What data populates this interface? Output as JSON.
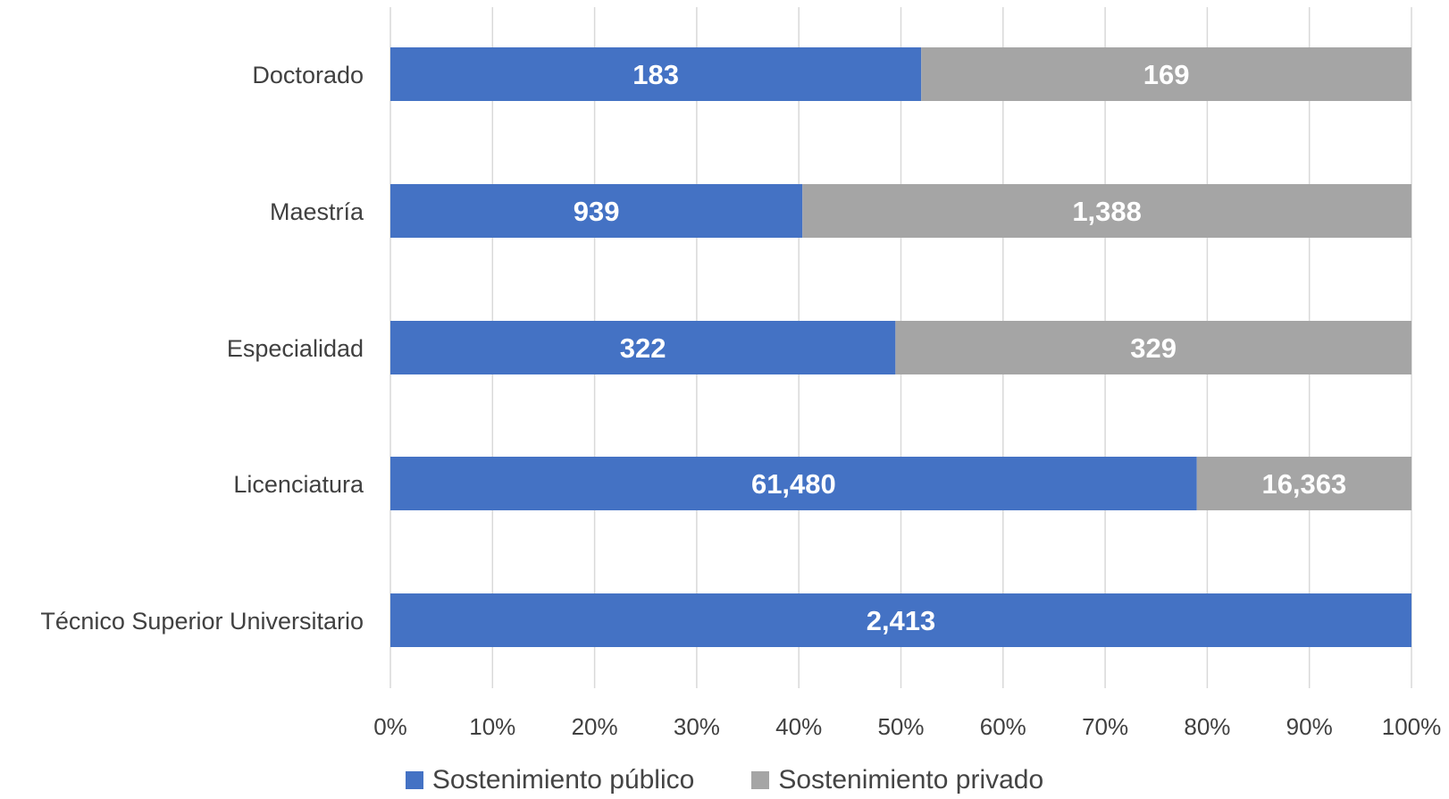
{
  "chart_data": {
    "type": "bar",
    "orientation": "horizontal",
    "stacking": "percent",
    "categories": [
      "Doctorado",
      "Maestría",
      "Especialidad",
      "Licenciatura",
      "Técnico Superior Universitario"
    ],
    "series": [
      {
        "name": "Sostenimiento público",
        "values": [
          183,
          939,
          322,
          61480,
          2413
        ],
        "labels": [
          "183",
          "939",
          "322",
          "61,480",
          "2,413"
        ],
        "color": "#4472C4"
      },
      {
        "name": "Sostenimiento privado",
        "values": [
          169,
          1388,
          329,
          16363,
          0
        ],
        "labels": [
          "169",
          "1,388",
          "329",
          "16,363",
          "0"
        ],
        "color": "#A5A5A5"
      }
    ],
    "xticks": [
      "0%",
      "10%",
      "20%",
      "30%",
      "40%",
      "50%",
      "60%",
      "70%",
      "80%",
      "90%",
      "100%"
    ],
    "xlim": [
      0,
      100
    ],
    "grid": true,
    "legend": "bottom"
  }
}
